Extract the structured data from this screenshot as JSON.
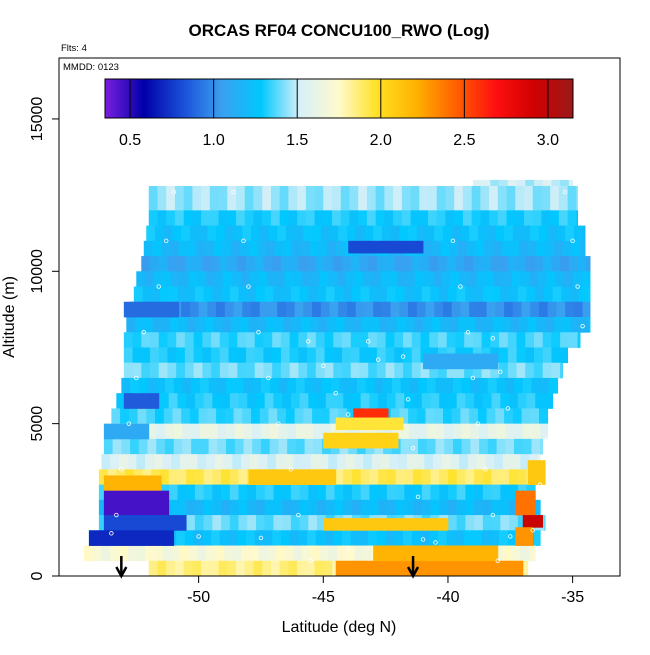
{
  "chart_data": {
    "type": "heatmap",
    "title": "ORCAS RF04 CONCU100_RWO (Log)",
    "notes": [
      "Flts: 4",
      "MMDD: 0123"
    ],
    "xlabel": "Latitude (deg N)",
    "ylabel": "Altitude (m)",
    "xlim": [
      -55.6,
      -33.1
    ],
    "ylim": [
      0,
      17000
    ],
    "x_ticks": [
      -50,
      -45,
      -40,
      -35
    ],
    "x_tick_labels": [
      "-50",
      "-45",
      "-40",
      "-35"
    ],
    "y_ticks": [
      0,
      5000,
      10000,
      15000
    ],
    "y_tick_labels": [
      "0",
      "5000",
      "10000",
      "15000"
    ],
    "colorbar": {
      "range": [
        0.35,
        3.15
      ],
      "ticks": [
        0.5,
        1.0,
        1.5,
        2.0,
        2.5,
        3.0
      ],
      "tick_labels": [
        "0.5",
        "1.0",
        "1.5",
        "2.0",
        "2.5",
        "3.0"
      ],
      "colors": [
        "#7a1fe0",
        "#0000a8",
        "#1a4fd8",
        "#3aa0f0",
        "#00c8ff",
        "#d8f0f8",
        "#fffacc",
        "#ffe020",
        "#ffb000",
        "#ff6000",
        "#ff1010",
        "#d00000",
        "#9a1a1a"
      ]
    },
    "arrows_x": [
      -53.1,
      -41.4
    ],
    "rows": [
      {
        "y0": 12400,
        "y1": 12800,
        "x0": -51.0,
        "x1": -48.6,
        "value": 1.4
      },
      {
        "y0": 12800,
        "y1": 13000,
        "x0": -39.0,
        "x1": -35.0,
        "value": 1.5
      },
      {
        "y0": 12000,
        "y1": 12800,
        "x0": -52.0,
        "x1": -34.8,
        "value": 1.45
      },
      {
        "y0": 11500,
        "y1": 12000,
        "x0": -52.0,
        "x1": -34.8,
        "value": 1.3
      },
      {
        "y0": 11000,
        "y1": 11500,
        "x0": -52.1,
        "x1": -34.5,
        "value": 1.25
      },
      {
        "y0": 10500,
        "y1": 11000,
        "x0": -52.2,
        "x1": -34.5,
        "value": 1.2
      },
      {
        "y0": 10000,
        "y1": 10500,
        "x0": -52.3,
        "x1": -34.3,
        "value": 1.1
      },
      {
        "y0": 9500,
        "y1": 10000,
        "x0": -52.5,
        "x1": -34.3,
        "value": 1.2
      },
      {
        "y0": 9000,
        "y1": 9500,
        "x0": -52.6,
        "x1": -34.3,
        "value": 1.25
      },
      {
        "y0": 8500,
        "y1": 9000,
        "x0": -52.8,
        "x1": -34.3,
        "value": 1.0
      },
      {
        "y0": 8000,
        "y1": 8500,
        "x0": -52.9,
        "x1": -34.3,
        "value": 1.2
      },
      {
        "y0": 7500,
        "y1": 8000,
        "x0": -53.0,
        "x1": -34.7,
        "value": 1.35
      },
      {
        "y0": 7000,
        "y1": 7500,
        "x0": -53.0,
        "x1": -35.2,
        "value": 1.3
      },
      {
        "y0": 6500,
        "y1": 7000,
        "x0": -53.0,
        "x1": -35.4,
        "value": 1.4
      },
      {
        "y0": 6000,
        "y1": 6500,
        "x0": -53.1,
        "x1": -35.6,
        "value": 1.25
      },
      {
        "y0": 5500,
        "y1": 6000,
        "x0": -53.3,
        "x1": -35.8,
        "value": 1.3
      },
      {
        "y0": 5000,
        "y1": 5500,
        "x0": -53.5,
        "x1": -36.0,
        "value": 1.35
      },
      {
        "y0": 4500,
        "y1": 5000,
        "x0": -53.8,
        "x1": -36.0,
        "value": 1.6
      },
      {
        "y0": 4000,
        "y1": 4500,
        "x0": -53.8,
        "x1": -36.2,
        "value": 1.4
      },
      {
        "y0": 3500,
        "y1": 4000,
        "x0": -53.9,
        "x1": -36.3,
        "value": 1.55
      },
      {
        "y0": 3000,
        "y1": 3500,
        "x0": -54.0,
        "x1": -36.4,
        "value": 1.9
      },
      {
        "y0": 2500,
        "y1": 3000,
        "x0": -54.0,
        "x1": -36.5,
        "value": 1.3
      },
      {
        "y0": 2000,
        "y1": 2500,
        "x0": -54.0,
        "x1": -36.3,
        "value": 1.2
      },
      {
        "y0": 1500,
        "y1": 2000,
        "x0": -54.0,
        "x1": -36.1,
        "value": 1.4
      },
      {
        "y0": 1000,
        "y1": 1500,
        "x0": -54.4,
        "x1": -36.3,
        "value": 1.25
      },
      {
        "y0": 500,
        "y1": 1000,
        "x0": -54.6,
        "x1": -36.5,
        "value": 1.7
      },
      {
        "y0": 0,
        "y1": 500,
        "x0": -52.0,
        "x1": -36.8,
        "value": 1.85
      }
    ],
    "patches": [
      {
        "x0": -53.8,
        "x1": -51.5,
        "y0": 2800,
        "y1": 3300,
        "value": 2.2
      },
      {
        "x0": -53.8,
        "x1": -51.2,
        "y0": 2000,
        "y1": 2800,
        "value": 0.45
      },
      {
        "x0": -53.8,
        "x1": -50.5,
        "y0": 1500,
        "y1": 2000,
        "value": 0.8
      },
      {
        "x0": -54.4,
        "x1": -51.0,
        "y0": 1000,
        "y1": 1500,
        "value": 0.7
      },
      {
        "x0": -53.8,
        "x1": -52.0,
        "y0": 4500,
        "y1": 5000,
        "value": 1.1
      },
      {
        "x0": -53.0,
        "x1": -51.6,
        "y0": 5500,
        "y1": 6000,
        "value": 0.85
      },
      {
        "x0": -53.0,
        "x1": -50.8,
        "y0": 8500,
        "y1": 9000,
        "value": 0.9
      },
      {
        "x0": -43.8,
        "x1": -42.4,
        "y0": 5200,
        "y1": 5500,
        "value": 2.6
      },
      {
        "x0": -44.5,
        "x1": -41.8,
        "y0": 4800,
        "y1": 5200,
        "value": 1.95
      },
      {
        "x0": -45.0,
        "x1": -42.0,
        "y0": 4200,
        "y1": 4700,
        "value": 2.05
      },
      {
        "x0": -48.0,
        "x1": -44.5,
        "y0": 3000,
        "y1": 3500,
        "value": 2.1
      },
      {
        "x0": -45.0,
        "x1": -40.0,
        "y0": 1500,
        "y1": 1900,
        "value": 2.1
      },
      {
        "x0": -44.5,
        "x1": -37.0,
        "y0": 0,
        "y1": 500,
        "value": 2.3
      },
      {
        "x0": -43.0,
        "x1": -38.0,
        "y0": 500,
        "y1": 1000,
        "value": 2.2
      },
      {
        "x0": -44.0,
        "x1": -41.0,
        "y0": 10600,
        "y1": 11000,
        "value": 0.8
      },
      {
        "x0": -37.3,
        "x1": -36.5,
        "y0": 2000,
        "y1": 2800,
        "value": 2.4
      },
      {
        "x0": -37.0,
        "x1": -36.2,
        "y0": 1600,
        "y1": 2000,
        "value": 2.95
      },
      {
        "x0": -37.3,
        "x1": -36.6,
        "y0": 1000,
        "y1": 1600,
        "value": 2.3
      },
      {
        "x0": -36.8,
        "x1": -36.1,
        "y0": 3000,
        "y1": 3800,
        "value": 2.1
      },
      {
        "x0": -41.0,
        "x1": -38.0,
        "y0": 6800,
        "y1": 7300,
        "value": 1.1
      }
    ],
    "track": [
      [
        -51.0,
        12600
      ],
      [
        -51.3,
        11000
      ],
      [
        -51.6,
        9500
      ],
      [
        -52.2,
        8000
      ],
      [
        -52.5,
        6500
      ],
      [
        -52.8,
        5000
      ],
      [
        -53.1,
        3500
      ],
      [
        -53.3,
        2000
      ],
      [
        -53.1,
        400
      ],
      [
        -48.6,
        12600
      ],
      [
        -48.2,
        11000
      ],
      [
        -48.0,
        9500
      ],
      [
        -47.6,
        8000
      ],
      [
        -47.2,
        6500
      ],
      [
        -46.8,
        5000
      ],
      [
        -46.3,
        3500
      ],
      [
        -46.0,
        2000
      ],
      [
        -45.5,
        500
      ],
      [
        -45.6,
        7700
      ],
      [
        -45.0,
        6900
      ],
      [
        -44.5,
        6000
      ],
      [
        -44.0,
        5300
      ],
      [
        -43.2,
        7700
      ],
      [
        -42.8,
        7100
      ],
      [
        -41.8,
        7200
      ],
      [
        -41.6,
        5800
      ],
      [
        -41.4,
        4200
      ],
      [
        -41.2,
        2600
      ],
      [
        -41.0,
        1200
      ],
      [
        -39.8,
        11000
      ],
      [
        -39.5,
        9500
      ],
      [
        -39.2,
        8000
      ],
      [
        -39.0,
        6500
      ],
      [
        -38.8,
        5000
      ],
      [
        -38.5,
        3500
      ],
      [
        -38.2,
        2000
      ],
      [
        -38.0,
        500
      ],
      [
        -38.2,
        7800
      ],
      [
        -37.9,
        6700
      ],
      [
        -37.6,
        5500
      ],
      [
        -35.3,
        12600
      ],
      [
        -35.0,
        11000
      ],
      [
        -34.8,
        9500
      ],
      [
        -34.6,
        8200
      ],
      [
        -35.0,
        7000
      ],
      [
        -35.6,
        5800
      ],
      [
        -36.0,
        4500
      ],
      [
        -36.3,
        3000
      ],
      [
        -36.6,
        1500
      ],
      [
        -53.5,
        1400
      ],
      [
        -50.0,
        1300
      ],
      [
        -47.5,
        1250
      ],
      [
        -44.0,
        900
      ],
      [
        -40.5,
        1100
      ],
      [
        -37.5,
        1300
      ]
    ]
  }
}
